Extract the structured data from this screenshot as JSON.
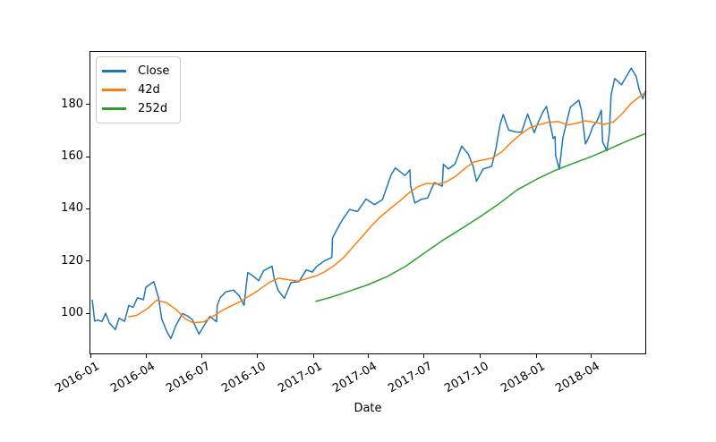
{
  "figure": {
    "background": "#ffffff",
    "text_color": "#000000",
    "spine_color": "#000000"
  },
  "chart_data": {
    "type": "line",
    "title": "",
    "xlabel": "Date",
    "ylabel": "",
    "grid": false,
    "legend_position": "upper-left",
    "xlim": [
      "2016-01-01",
      "2018-06-29"
    ],
    "ylim": [
      84.6,
      200.2
    ],
    "yticks": [
      100,
      120,
      140,
      160,
      180
    ],
    "xticks": [
      {
        "date": "2016-01-01",
        "label": "2016-01"
      },
      {
        "date": "2016-04-01",
        "label": "2016-04"
      },
      {
        "date": "2016-07-01",
        "label": "2016-07"
      },
      {
        "date": "2016-10-01",
        "label": "2016-10"
      },
      {
        "date": "2017-01-01",
        "label": "2017-01"
      },
      {
        "date": "2017-04-01",
        "label": "2017-04"
      },
      {
        "date": "2017-07-01",
        "label": "2017-07"
      },
      {
        "date": "2017-10-01",
        "label": "2017-10"
      },
      {
        "date": "2018-01-01",
        "label": "2018-01"
      },
      {
        "date": "2018-04-01",
        "label": "2018-04"
      }
    ],
    "series": [
      {
        "name": "Close",
        "color": "#1f77b4",
        "points": [
          [
            "2016-01-04",
            105.3
          ],
          [
            "2016-01-08",
            97.0
          ],
          [
            "2016-01-13",
            97.4
          ],
          [
            "2016-01-20",
            96.8
          ],
          [
            "2016-01-26",
            100.0
          ],
          [
            "2016-02-01",
            96.4
          ],
          [
            "2016-02-11",
            93.7
          ],
          [
            "2016-02-17",
            98.1
          ],
          [
            "2016-02-26",
            96.9
          ],
          [
            "2016-03-04",
            103.0
          ],
          [
            "2016-03-11",
            102.3
          ],
          [
            "2016-03-18",
            105.9
          ],
          [
            "2016-03-28",
            105.2
          ],
          [
            "2016-04-01",
            110.0
          ],
          [
            "2016-04-14",
            112.1
          ],
          [
            "2016-04-22",
            105.7
          ],
          [
            "2016-04-27",
            97.8
          ],
          [
            "2016-05-06",
            92.7
          ],
          [
            "2016-05-12",
            90.3
          ],
          [
            "2016-05-20",
            95.2
          ],
          [
            "2016-05-31",
            99.9
          ],
          [
            "2016-06-08",
            99.0
          ],
          [
            "2016-06-16",
            97.6
          ],
          [
            "2016-06-27",
            92.0
          ],
          [
            "2016-07-06",
            95.5
          ],
          [
            "2016-07-15",
            98.8
          ],
          [
            "2016-07-26",
            96.7
          ],
          [
            "2016-07-27",
            103.0
          ],
          [
            "2016-08-01",
            106.0
          ],
          [
            "2016-08-10",
            108.2
          ],
          [
            "2016-08-23",
            108.9
          ],
          [
            "2016-09-01",
            106.7
          ],
          [
            "2016-09-09",
            103.1
          ],
          [
            "2016-09-15",
            115.6
          ],
          [
            "2016-09-22",
            114.6
          ],
          [
            "2016-10-03",
            112.5
          ],
          [
            "2016-10-11",
            116.3
          ],
          [
            "2016-10-25",
            118.0
          ],
          [
            "2016-10-28",
            113.7
          ],
          [
            "2016-11-04",
            108.8
          ],
          [
            "2016-11-14",
            105.7
          ],
          [
            "2016-11-25",
            111.8
          ],
          [
            "2016-12-08",
            112.1
          ],
          [
            "2016-12-20",
            116.6
          ],
          [
            "2016-12-30",
            115.8
          ],
          [
            "2017-01-06",
            117.9
          ],
          [
            "2017-01-18",
            120.0
          ],
          [
            "2017-01-31",
            121.4
          ],
          [
            "2017-02-01",
            128.8
          ],
          [
            "2017-02-08",
            132.0
          ],
          [
            "2017-02-17",
            135.7
          ],
          [
            "2017-03-01",
            139.8
          ],
          [
            "2017-03-14",
            139.0
          ],
          [
            "2017-03-28",
            143.8
          ],
          [
            "2017-04-11",
            141.6
          ],
          [
            "2017-04-24",
            143.6
          ],
          [
            "2017-05-08",
            153.0
          ],
          [
            "2017-05-15",
            155.7
          ],
          [
            "2017-05-31",
            152.8
          ],
          [
            "2017-06-08",
            155.0
          ],
          [
            "2017-06-09",
            149.0
          ],
          [
            "2017-06-16",
            142.3
          ],
          [
            "2017-06-27",
            143.7
          ],
          [
            "2017-07-07",
            144.2
          ],
          [
            "2017-07-18",
            150.1
          ],
          [
            "2017-07-31",
            148.7
          ],
          [
            "2017-08-02",
            157.1
          ],
          [
            "2017-08-10",
            155.3
          ],
          [
            "2017-08-21",
            157.2
          ],
          [
            "2017-09-01",
            164.1
          ],
          [
            "2017-09-12",
            160.9
          ],
          [
            "2017-09-20",
            156.1
          ],
          [
            "2017-09-25",
            150.6
          ],
          [
            "2017-10-06",
            155.3
          ],
          [
            "2017-10-20",
            156.3
          ],
          [
            "2017-10-27",
            163.1
          ],
          [
            "2017-11-03",
            172.5
          ],
          [
            "2017-11-08",
            176.2
          ],
          [
            "2017-11-17",
            170.2
          ],
          [
            "2017-11-29",
            169.5
          ],
          [
            "2017-12-08",
            169.4
          ],
          [
            "2017-12-18",
            176.4
          ],
          [
            "2017-12-29",
            169.2
          ],
          [
            "2018-01-04",
            173.0
          ],
          [
            "2018-01-12",
            177.1
          ],
          [
            "2018-01-18",
            179.3
          ],
          [
            "2018-01-29",
            167.0
          ],
          [
            "2018-02-01",
            167.8
          ],
          [
            "2018-02-02",
            160.5
          ],
          [
            "2018-02-08",
            155.2
          ],
          [
            "2018-02-14",
            167.4
          ],
          [
            "2018-02-26",
            179.0
          ],
          [
            "2018-03-12",
            181.7
          ],
          [
            "2018-03-16",
            178.0
          ],
          [
            "2018-03-23",
            164.9
          ],
          [
            "2018-03-29",
            167.8
          ],
          [
            "2018-04-04",
            171.6
          ],
          [
            "2018-04-10",
            173.3
          ],
          [
            "2018-04-18",
            177.8
          ],
          [
            "2018-04-20",
            165.7
          ],
          [
            "2018-04-27",
            162.3
          ],
          [
            "2018-05-01",
            169.1
          ],
          [
            "2018-05-04",
            183.8
          ],
          [
            "2018-05-10",
            190.0
          ],
          [
            "2018-05-21",
            187.6
          ],
          [
            "2018-06-06",
            194.0
          ],
          [
            "2018-06-14",
            190.8
          ],
          [
            "2018-06-19",
            185.7
          ],
          [
            "2018-06-25",
            182.2
          ],
          [
            "2018-06-29",
            185.1
          ]
        ]
      },
      {
        "name": "42d",
        "color": "#ff7f0e",
        "points": [
          [
            "2016-03-03",
            98.6
          ],
          [
            "2016-03-18",
            99.3
          ],
          [
            "2016-04-05",
            102.0
          ],
          [
            "2016-04-18",
            105.0
          ],
          [
            "2016-05-05",
            104.0
          ],
          [
            "2016-05-20",
            101.5
          ],
          [
            "2016-06-05",
            97.8
          ],
          [
            "2016-06-17",
            96.4
          ],
          [
            "2016-07-05",
            96.7
          ],
          [
            "2016-07-20",
            98.8
          ],
          [
            "2016-08-05",
            101.2
          ],
          [
            "2016-09-01",
            104.3
          ],
          [
            "2016-10-01",
            108.5
          ],
          [
            "2016-10-20",
            111.8
          ],
          [
            "2016-11-05",
            113.4
          ],
          [
            "2016-11-22",
            112.8
          ],
          [
            "2016-12-06",
            112.3
          ],
          [
            "2016-12-20",
            113.2
          ],
          [
            "2017-01-05",
            114.3
          ],
          [
            "2017-01-20",
            116.0
          ],
          [
            "2017-02-05",
            118.5
          ],
          [
            "2017-02-20",
            121.5
          ],
          [
            "2017-03-07",
            125.5
          ],
          [
            "2017-03-22",
            129.5
          ],
          [
            "2017-04-06",
            133.5
          ],
          [
            "2017-04-21",
            137.0
          ],
          [
            "2017-05-06",
            140.0
          ],
          [
            "2017-05-22",
            143.0
          ],
          [
            "2017-06-06",
            146.0
          ],
          [
            "2017-06-21",
            148.5
          ],
          [
            "2017-07-06",
            149.8
          ],
          [
            "2017-07-21",
            149.5
          ],
          [
            "2017-08-05",
            150.2
          ],
          [
            "2017-08-22",
            152.5
          ],
          [
            "2017-09-06",
            155.5
          ],
          [
            "2017-09-21",
            158.0
          ],
          [
            "2017-10-06",
            158.8
          ],
          [
            "2017-10-21",
            159.5
          ],
          [
            "2017-11-06",
            162.0
          ],
          [
            "2017-11-21",
            165.5
          ],
          [
            "2017-12-06",
            168.5
          ],
          [
            "2017-12-21",
            171.0
          ],
          [
            "2018-01-06",
            172.3
          ],
          [
            "2018-01-21",
            173.2
          ],
          [
            "2018-02-06",
            173.5
          ],
          [
            "2018-02-21",
            172.2
          ],
          [
            "2018-03-08",
            172.8
          ],
          [
            "2018-03-23",
            173.8
          ],
          [
            "2018-04-07",
            173.2
          ],
          [
            "2018-04-22",
            172.4
          ],
          [
            "2018-05-07",
            173.2
          ],
          [
            "2018-05-22",
            176.5
          ],
          [
            "2018-06-06",
            180.5
          ],
          [
            "2018-06-21",
            183.3
          ],
          [
            "2018-06-29",
            184.6
          ]
        ]
      },
      {
        "name": "252d",
        "color": "#2ca02c",
        "points": [
          [
            "2017-01-04",
            104.5
          ],
          [
            "2017-02-01",
            106.3
          ],
          [
            "2017-03-01",
            108.5
          ],
          [
            "2017-04-01",
            111.0
          ],
          [
            "2017-05-01",
            114.0
          ],
          [
            "2017-06-01",
            118.0
          ],
          [
            "2017-07-01",
            123.0
          ],
          [
            "2017-08-01",
            128.0
          ],
          [
            "2017-09-01",
            132.5
          ],
          [
            "2017-10-01",
            137.0
          ],
          [
            "2017-11-01",
            142.0
          ],
          [
            "2017-12-01",
            147.3
          ],
          [
            "2018-01-01",
            151.3
          ],
          [
            "2018-02-01",
            154.8
          ],
          [
            "2018-03-01",
            157.3
          ],
          [
            "2018-04-01",
            160.0
          ],
          [
            "2018-05-01",
            163.0
          ],
          [
            "2018-06-01",
            166.2
          ],
          [
            "2018-06-29",
            168.8
          ]
        ]
      }
    ]
  }
}
